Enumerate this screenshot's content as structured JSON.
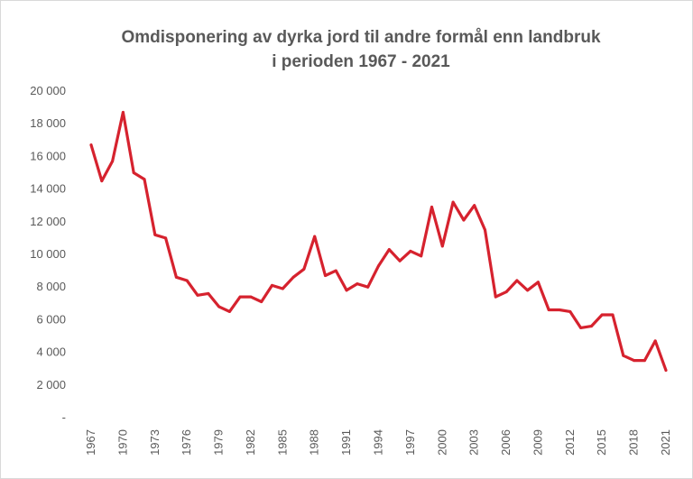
{
  "chart_data": {
    "type": "line",
    "title": "Omdisponering av dyrka jord til andre formål enn landbruk",
    "subtitle": "i perioden 1967 - 2021",
    "xlabel": "",
    "ylabel": "",
    "ylim": [
      0,
      20000
    ],
    "yticks": [
      "-",
      "2 000",
      "4 000",
      "6 000",
      "8 000",
      "10 000",
      "12 000",
      "14 000",
      "16 000",
      "18 000",
      "20 000"
    ],
    "xtick_labels": [
      "1967",
      "1970",
      "1973",
      "1976",
      "1979",
      "1982",
      "1985",
      "1988",
      "1991",
      "1994",
      "1997",
      "2000",
      "2003",
      "2006",
      "2009",
      "2012",
      "2015",
      "2018",
      "2021"
    ],
    "grid": false,
    "legend": "none",
    "color": "#d6222e",
    "x": [
      1967,
      1968,
      1969,
      1970,
      1971,
      1972,
      1973,
      1974,
      1975,
      1976,
      1977,
      1978,
      1979,
      1980,
      1981,
      1982,
      1983,
      1984,
      1985,
      1986,
      1987,
      1988,
      1989,
      1990,
      1991,
      1992,
      1993,
      1994,
      1995,
      1996,
      1997,
      1998,
      1999,
      2000,
      2001,
      2002,
      2003,
      2004,
      2005,
      2006,
      2007,
      2008,
      2009,
      2010,
      2011,
      2012,
      2013,
      2014,
      2015,
      2016,
      2017,
      2018,
      2019,
      2020,
      2021
    ],
    "values": [
      16700,
      14500,
      15700,
      18700,
      15000,
      14600,
      11200,
      11000,
      8600,
      8400,
      7500,
      7600,
      6800,
      6500,
      7400,
      7400,
      7100,
      8100,
      7900,
      8600,
      9100,
      11100,
      8700,
      9000,
      7800,
      8200,
      8000,
      9300,
      10300,
      9600,
      10200,
      9900,
      12900,
      10500,
      13200,
      12100,
      13000,
      11500,
      7400,
      7700,
      8400,
      7800,
      8300,
      6600,
      6600,
      6500,
      5500,
      5600,
      6300,
      6300,
      3800,
      3500,
      3500,
      4700,
      2900
    ]
  }
}
